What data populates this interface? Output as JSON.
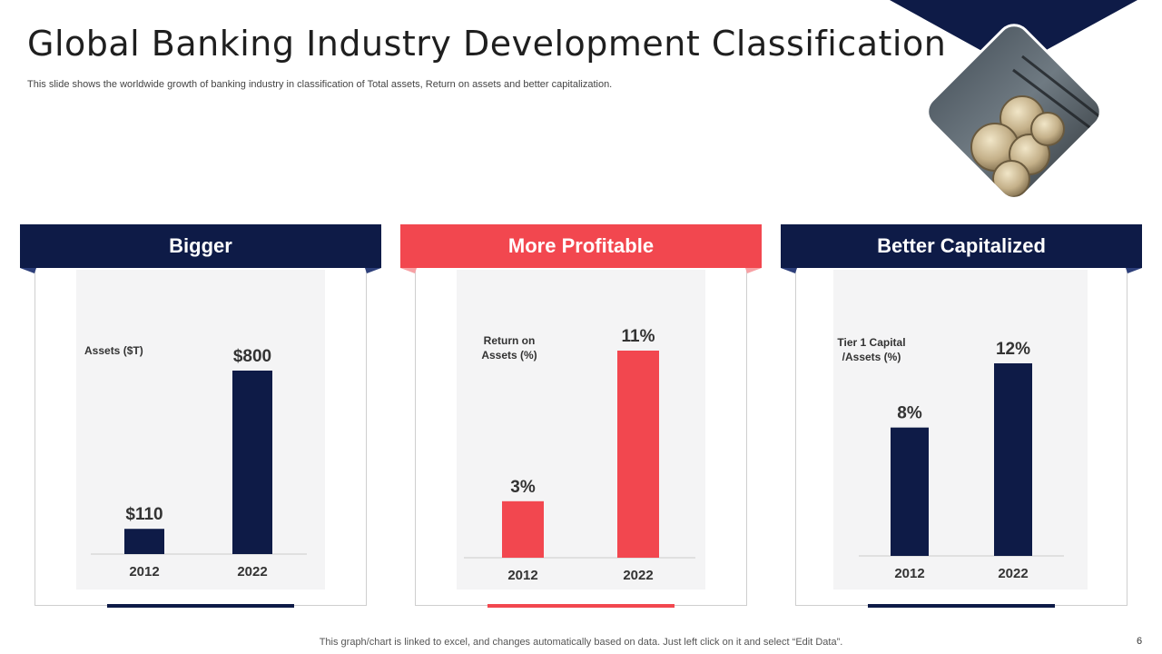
{
  "slide": {
    "title": "Global Banking Industry Development Classification",
    "subtitle": "This slide shows the worldwide growth of banking industry in classification of Total assets, Return on assets and better capitalization.",
    "footer": "This graph/chart is linked to excel,  and changes automatically based on data. Just left click on it and select “Edit Data”.",
    "page_number": "6"
  },
  "colors": {
    "navy": "#0e1b47",
    "red": "#f2474f",
    "grid": "#cccccc"
  },
  "panels": [
    {
      "header": "Bigger",
      "color": "#0e1b47"
    },
    {
      "header": "More Profitable",
      "color": "#f2474f"
    },
    {
      "header": "Better Capitalized",
      "color": "#0e1b47"
    }
  ],
  "chart_data": [
    {
      "type": "bar",
      "title": "Bigger",
      "ylabel": [
        "Assets  ($T)"
      ],
      "categories": [
        "2012",
        "2022"
      ],
      "values": [
        110,
        800
      ],
      "labels": [
        "$110",
        "$800"
      ],
      "ylim": [
        0,
        800
      ],
      "color": "#0e1b47"
    },
    {
      "type": "bar",
      "title": "More Profitable",
      "ylabel": [
        "Return on",
        "Assets  (%)"
      ],
      "categories": [
        "2012",
        "2022"
      ],
      "values": [
        3,
        11
      ],
      "labels": [
        "3%",
        "11%"
      ],
      "ylim": [
        0,
        11
      ],
      "color": "#f2474f"
    },
    {
      "type": "bar",
      "title": "Better Capitalized",
      "ylabel": [
        "Tier 1 Capital",
        "/Assets  (%)"
      ],
      "categories": [
        "2012",
        "2022"
      ],
      "values": [
        8,
        12
      ],
      "labels": [
        "8%",
        "12%"
      ],
      "ylim": [
        0,
        12
      ],
      "color": "#0e1b47"
    }
  ]
}
